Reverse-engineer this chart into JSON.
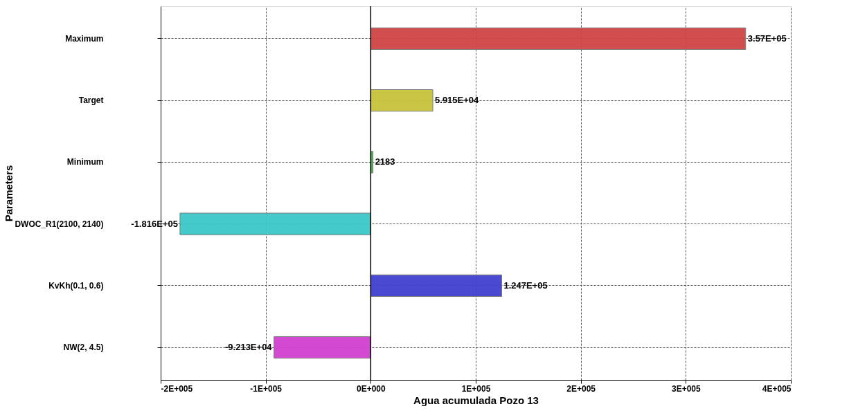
{
  "chart_data": {
    "type": "bar",
    "orientation": "horizontal",
    "xlabel": "Agua acumulada Pozo 13",
    "ylabel": "Parameters",
    "categories": [
      "Maximum",
      "Target",
      "Minimum",
      "DWOC_R1(2100, 2140)",
      "KvKh(0.1, 0.6)",
      "NW(2, 4.5)"
    ],
    "values": [
      357000,
      59150,
      2183,
      -181600,
      124700,
      -92130
    ],
    "colors": [
      "#d04545",
      "#c8c43c",
      "#3cb43c",
      "#3cc8c8",
      "#4040d0",
      "#d040d0"
    ],
    "value_labels": [
      "3.57E+05",
      "5.915E+04",
      "2183",
      "-1.816E+05",
      "1.247E+05",
      "-9.213E+04"
    ],
    "xlim": [
      -200000,
      400000
    ],
    "xticks": [
      {
        "value": -200000,
        "label": "-2E+005"
      },
      {
        "value": -100000,
        "label": "-1E+005"
      },
      {
        "value": 0,
        "label": "0E+000"
      },
      {
        "value": 100000,
        "label": "1E+005"
      },
      {
        "value": 200000,
        "label": "2E+005"
      },
      {
        "value": 300000,
        "label": "3E+005"
      },
      {
        "value": 400000,
        "label": "4E+005"
      }
    ],
    "ref_lines": [
      {
        "axis": "x",
        "value": 0,
        "color": "#000000"
      }
    ],
    "grid": true
  }
}
